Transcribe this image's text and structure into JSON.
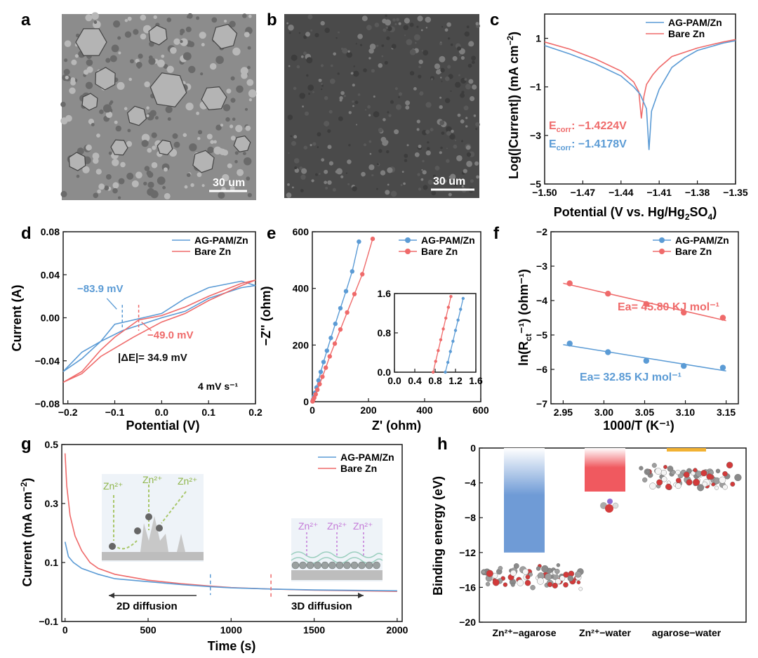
{
  "colors": {
    "blue": "#5b9bd5",
    "red": "#ef6a6a",
    "frame": "#1a1a1a"
  },
  "legend": {
    "ag": "AG-PAM/Zn",
    "bare": "Bare Zn"
  },
  "panels": {
    "a": {
      "label": "a",
      "scale": "30 um"
    },
    "b": {
      "label": "b",
      "scale": "30 um"
    },
    "c": {
      "label": "c",
      "xlabel": "Potential (V vs. Hg/Hg",
      "xlabel_sub": "2",
      "xlabel_mid": "SO",
      "xlabel_sub2": "4",
      "xlabel_end": ")",
      "ylabel": "Log(|Current|) (mA cm",
      "ylabel_sup": "−2",
      "ylabel_end": ")",
      "ecorr_red_pre": "E",
      "ecorr_red_sub": "corr",
      "ecorr_red_val": ": −1.4224V",
      "ecorr_blue_pre": "E",
      "ecorr_blue_sub": "corr",
      "ecorr_blue_val": ": −1.4178V"
    },
    "d": {
      "label": "d",
      "xlabel": "Potential (V)",
      "ylabel": "Current (A)",
      "anno_blue": "−83.9 mV",
      "anno_red": "−49.0 mV",
      "delta": "|ΔE|= 34.9 mV",
      "rate": "4 mV s⁻¹"
    },
    "e": {
      "label": "e",
      "xlabel": "Z' (ohm)",
      "ylabel": "−Z'' (ohm)"
    },
    "f": {
      "label": "f",
      "xlabel": "1000/T (K⁻¹)",
      "ylabel_pre": "ln(R",
      "ylabel_sub": "ct",
      "ylabel_end": "⁻¹) (ohm⁻¹)",
      "ea_red": "Ea= 45.80 KJ mol⁻¹",
      "ea_blue": "Ea= 32.85 KJ mol⁻¹"
    },
    "g": {
      "label": "g",
      "xlabel": "Time (s)",
      "ylabel": "Current (mA cm",
      "ylabel_sup": "−2",
      "ylabel_end": ")",
      "zn": "Zn²⁺",
      "diff2d": "2D diffusion",
      "diff3d": "3D diffusion"
    },
    "h": {
      "label": "h",
      "ylabel": "Binding energy (eV)"
    }
  },
  "chart_data": [
    {
      "panel": "c",
      "type": "line",
      "xlim": [
        -1.5,
        -1.35
      ],
      "ylim": [
        -5,
        2
      ],
      "xticks": [
        "−1.50",
        "−1.47",
        "−1.44",
        "−1.41",
        "−1.38",
        "−1.35"
      ],
      "yticks": [
        "−5",
        "−3",
        "−1",
        "1"
      ],
      "series": [
        {
          "name": "AG-PAM/Zn",
          "x": [
            -1.5,
            -1.48,
            -1.46,
            -1.44,
            -1.43,
            -1.425,
            -1.42,
            -1.418,
            -1.416,
            -1.41,
            -1.4,
            -1.39,
            -1.38,
            -1.36,
            -1.35
          ],
          "y": [
            0.7,
            0.35,
            -0.05,
            -0.55,
            -1.0,
            -1.3,
            -1.9,
            -3.6,
            -2.0,
            -1.1,
            -0.2,
            0.2,
            0.5,
            0.8,
            0.9
          ]
        },
        {
          "name": "Bare Zn",
          "x": [
            -1.5,
            -1.48,
            -1.46,
            -1.44,
            -1.43,
            -1.426,
            -1.424,
            -1.422,
            -1.42,
            -1.415,
            -1.41,
            -1.4,
            -1.38,
            -1.36,
            -1.35
          ],
          "y": [
            0.85,
            0.55,
            0.15,
            -0.35,
            -0.8,
            -1.2,
            -2.3,
            -1.4,
            -0.9,
            -0.5,
            -0.2,
            0.25,
            0.6,
            0.85,
            0.95
          ]
        }
      ]
    },
    {
      "panel": "d",
      "type": "line",
      "xlim": [
        -0.21,
        0.2
      ],
      "ylim": [
        -0.08,
        0.08
      ],
      "xticks": [
        "−0.2",
        "−0.1",
        "0.0",
        "0.1",
        "0.2"
      ],
      "yticks": [
        "−0.08",
        "−0.04",
        "0.00",
        "0.04",
        "0.08"
      ],
      "series": [
        {
          "name": "AG-PAM/Zn",
          "x": [
            -0.21,
            -0.17,
            -0.13,
            -0.1,
            -0.06,
            0.0,
            0.05,
            0.1,
            0.17,
            0.2,
            0.17,
            0.1,
            0.05,
            0.0,
            -0.084,
            -0.13,
            -0.17,
            -0.21
          ],
          "y": [
            -0.05,
            -0.038,
            -0.022,
            -0.006,
            -0.002,
            0.004,
            0.018,
            0.028,
            0.034,
            0.03,
            0.028,
            0.018,
            0.006,
            0.0,
            -0.012,
            -0.022,
            -0.032,
            -0.05
          ]
        },
        {
          "name": "Bare Zn",
          "x": [
            -0.21,
            -0.17,
            -0.13,
            -0.1,
            -0.049,
            0.0,
            0.05,
            0.1,
            0.17,
            0.2,
            0.17,
            0.1,
            0.05,
            0.0,
            -0.06,
            -0.13,
            -0.17,
            -0.21
          ],
          "y": [
            -0.06,
            -0.05,
            -0.03,
            -0.018,
            -0.002,
            0.002,
            0.01,
            0.02,
            0.032,
            0.035,
            0.03,
            0.016,
            0.004,
            -0.004,
            -0.018,
            -0.036,
            -0.052,
            -0.06
          ]
        }
      ],
      "annotations": [
        {
          "x": -0.0839,
          "text": "−83.9 mV"
        },
        {
          "x": -0.049,
          "text": "−49.0 mV"
        }
      ]
    },
    {
      "panel": "e",
      "type": "scatter",
      "xlim": [
        0,
        600
      ],
      "ylim": [
        0,
        600
      ],
      "xticks": [
        "0",
        "200",
        "400",
        "600"
      ],
      "yticks": [
        "0",
        "200",
        "400",
        "600"
      ],
      "series": [
        {
          "name": "AG-PAM/Zn",
          "x": [
            1,
            3,
            6,
            10,
            15,
            22,
            30,
            40,
            52,
            66,
            82,
            100,
            120,
            142,
            166
          ],
          "y": [
            2,
            8,
            18,
            32,
            50,
            75,
            105,
            140,
            180,
            225,
            275,
            330,
            390,
            460,
            565
          ]
        },
        {
          "name": "Bare Zn",
          "x": [
            1,
            3,
            7,
            12,
            18,
            26,
            36,
            48,
            62,
            80,
            100,
            124,
            150,
            178,
            215
          ],
          "y": [
            1,
            6,
            14,
            26,
            42,
            62,
            88,
            120,
            160,
            205,
            255,
            315,
            380,
            450,
            575
          ]
        }
      ],
      "inset": {
        "xlim": [
          0,
          1.6
        ],
        "ylim": [
          0,
          1.6
        ],
        "xticks": [
          "0.0",
          "0.4",
          "0.8",
          "1.2",
          "1.6"
        ],
        "yticks": [
          "0.0",
          "0.8",
          "1.6"
        ],
        "series": [
          {
            "name": "AG-PAM/Zn",
            "x": [
              1.0,
              1.05,
              1.1,
              1.15,
              1.2,
              1.25,
              1.3,
              1.35
            ],
            "y": [
              0.0,
              0.2,
              0.42,
              0.63,
              0.85,
              1.06,
              1.28,
              1.5
            ]
          },
          {
            "name": "Bare Zn",
            "x": [
              0.76,
              0.81,
              0.86,
              0.91,
              0.96,
              1.01,
              1.06,
              1.11
            ],
            "y": [
              0.0,
              0.22,
              0.44,
              0.66,
              0.88,
              1.1,
              1.32,
              1.54
            ]
          }
        ]
      }
    },
    {
      "panel": "f",
      "type": "scatter",
      "xlim": [
        2.935,
        3.165
      ],
      "ylim": [
        -7,
        -2
      ],
      "xticks": [
        "2.95",
        "3.00",
        "3.05",
        "3.10",
        "3.15"
      ],
      "yticks": [
        "−7",
        "−6",
        "−5",
        "−4",
        "−3",
        "−2"
      ],
      "series": [
        {
          "name": "AG-PAM/Zn",
          "x": [
            2.958,
            3.005,
            3.052,
            3.098,
            3.146
          ],
          "y": [
            -5.25,
            -5.5,
            -5.75,
            -5.9,
            -5.95
          ]
        },
        {
          "name": "Bare Zn",
          "x": [
            2.958,
            3.005,
            3.052,
            3.098,
            3.146
          ],
          "y": [
            -3.5,
            -3.8,
            -4.1,
            -4.35,
            -4.5
          ]
        }
      ]
    },
    {
      "panel": "g",
      "type": "line",
      "xlim": [
        -20,
        2030
      ],
      "ylim": [
        -0.1,
        0.5
      ],
      "xticks": [
        "0",
        "500",
        "1000",
        "1500",
        "2000"
      ],
      "yticks": [
        "−0.1",
        "0.1",
        "0.3",
        "0.5"
      ],
      "series": [
        {
          "name": "AG-PAM/Zn",
          "x": [
            0,
            20,
            50,
            100,
            200,
            300,
            500,
            700,
            875,
            1000,
            1240,
            1500,
            2000
          ],
          "y": [
            0.17,
            0.12,
            0.1,
            0.08,
            0.06,
            0.045,
            0.035,
            0.025,
            0.018,
            0.014,
            0.01,
            0.007,
            0.004
          ]
        },
        {
          "name": "Bare Zn",
          "x": [
            0,
            10,
            30,
            60,
            100,
            150,
            200,
            300,
            500,
            700,
            875,
            1000,
            1240,
            1500,
            2000
          ],
          "y": [
            0.47,
            0.36,
            0.26,
            0.19,
            0.14,
            0.1,
            0.08,
            0.06,
            0.04,
            0.028,
            0.02,
            0.015,
            0.01,
            0.006,
            0.002
          ]
        }
      ],
      "markers": [
        875,
        1240
      ]
    },
    {
      "panel": "h",
      "type": "bar",
      "ylim": [
        -20,
        0
      ],
      "categories": [
        "Zn²⁺−agarose",
        "Zn²⁺−water",
        "agarose−water"
      ],
      "values": [
        -12.0,
        -5.0,
        -0.3
      ],
      "yticks": [
        "−20",
        "−16",
        "−12",
        "−8",
        "−4",
        "0"
      ]
    }
  ]
}
